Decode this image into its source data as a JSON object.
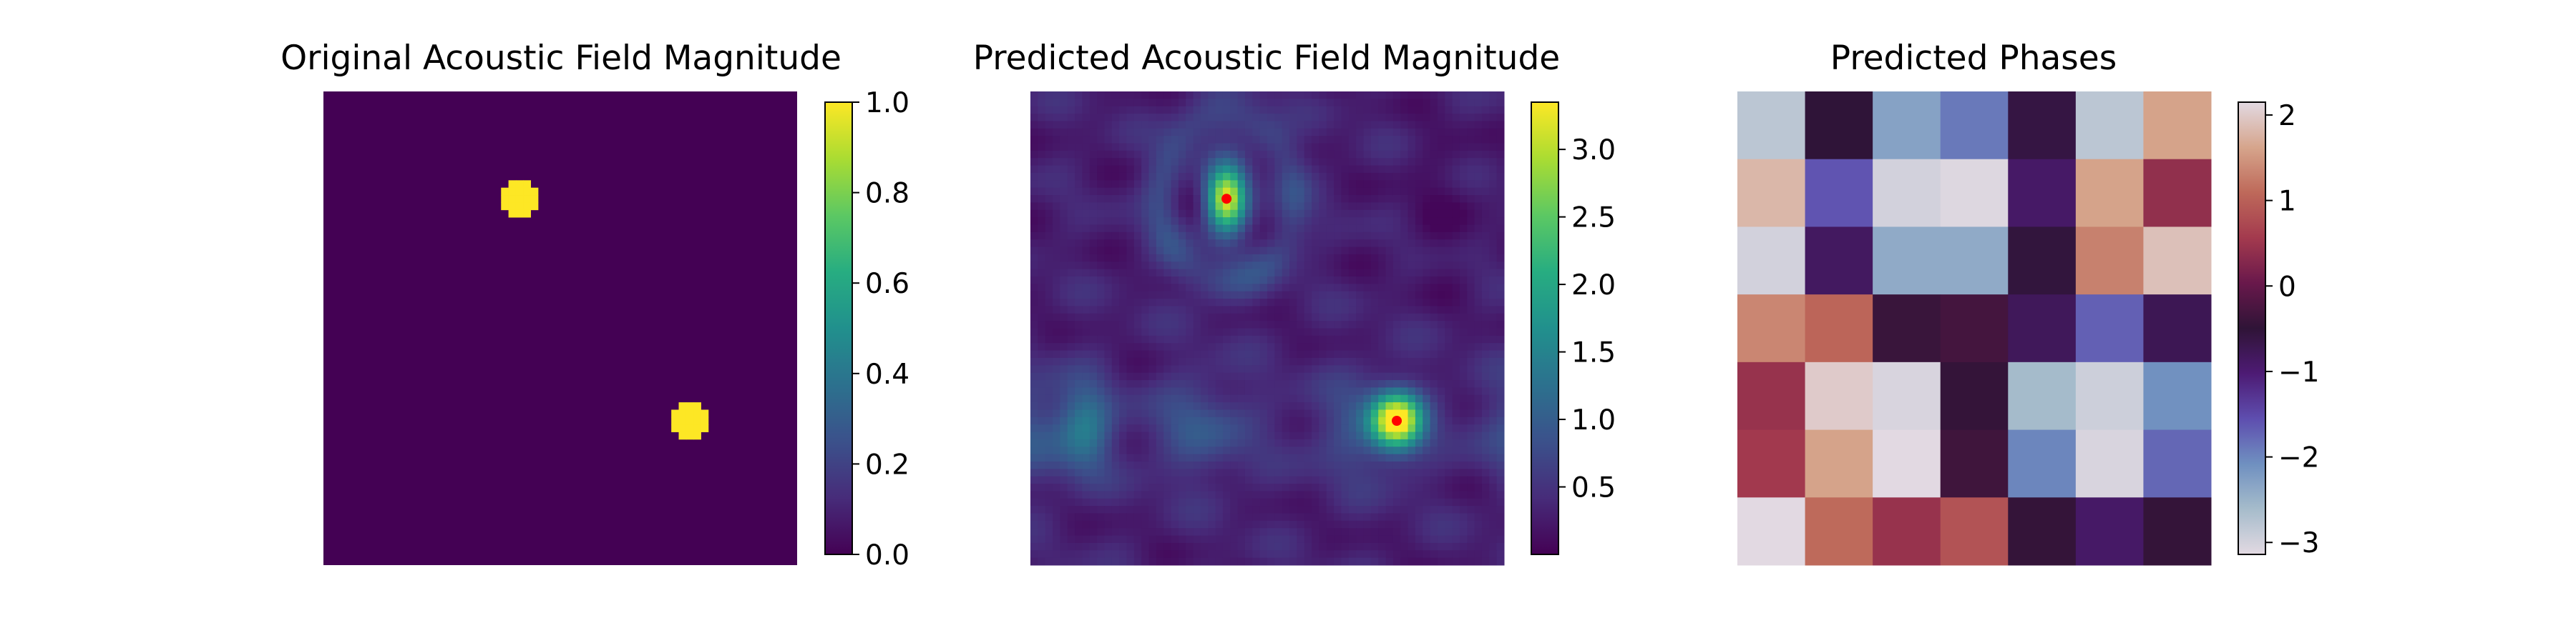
{
  "chart_data": [
    {
      "type": "heatmap",
      "title": "Original Acoustic Field Magnitude",
      "grid_size": [
        64,
        64
      ],
      "colormap": "viridis",
      "vmin": 0.0,
      "vmax": 1.0,
      "axes_visible": false,
      "colorbar_ticks": [
        "0.0",
        "0.2",
        "0.4",
        "0.6",
        "0.8",
        "1.0"
      ],
      "colorbar_tick_values": [
        0.0,
        0.2,
        0.4,
        0.6,
        0.8,
        1.0
      ],
      "targets": [
        {
          "col": 26,
          "row": 14,
          "radius": 2.4,
          "value": 1.0
        },
        {
          "col": 49,
          "row": 44,
          "radius": 2.4,
          "value": 1.0
        }
      ],
      "background_value": 0.0
    },
    {
      "type": "heatmap",
      "title": "Predicted Acoustic Field Magnitude",
      "grid_size": [
        64,
        64
      ],
      "colormap": "viridis",
      "vmin": 0.0,
      "vmax": 3.35,
      "axes_visible": false,
      "colorbar_ticks": [
        "0.5",
        "1.0",
        "1.5",
        "2.0",
        "2.5",
        "3.0"
      ],
      "colorbar_tick_values": [
        0.5,
        1.0,
        1.5,
        2.0,
        2.5,
        3.0
      ],
      "peaks": [
        {
          "col": 26,
          "row": 14,
          "value": 3.3
        },
        {
          "col": 49,
          "row": 44,
          "value": 3.35
        }
      ],
      "marker_color": "#ff0000"
    },
    {
      "type": "heatmap",
      "title": "Predicted Phases",
      "grid_size": [
        7,
        7
      ],
      "colormap": "twilight",
      "vmin": -3.14,
      "vmax": 2.15,
      "axes_visible": false,
      "colorbar_ticks": [
        "−3",
        "−2",
        "−1",
        "0",
        "1",
        "2"
      ],
      "colorbar_tick_values": [
        -3,
        -2,
        -1,
        0,
        1,
        2
      ],
      "values": [
        [
          -2.8,
          -0.5,
          -2.3,
          -1.9,
          -0.6,
          -2.8,
          1.6
        ],
        [
          1.8,
          -1.6,
          -3.0,
          -3.1,
          -0.9,
          1.6,
          0.4
        ],
        [
          -3.0,
          -0.85,
          -2.4,
          -2.4,
          -0.55,
          1.3,
          1.9
        ],
        [
          1.35,
          1.05,
          -0.4,
          -0.3,
          -0.8,
          -1.7,
          -0.75
        ],
        [
          0.45,
          2.0,
          -3.05,
          -0.45,
          -2.6,
          -2.95,
          -2.1
        ],
        [
          0.55,
          1.6,
          2.2,
          -0.35,
          -2.0,
          -3.05,
          -1.75
        ],
        [
          2.2,
          1.1,
          0.45,
          0.85,
          -0.45,
          -0.9,
          -0.45
        ]
      ]
    }
  ]
}
